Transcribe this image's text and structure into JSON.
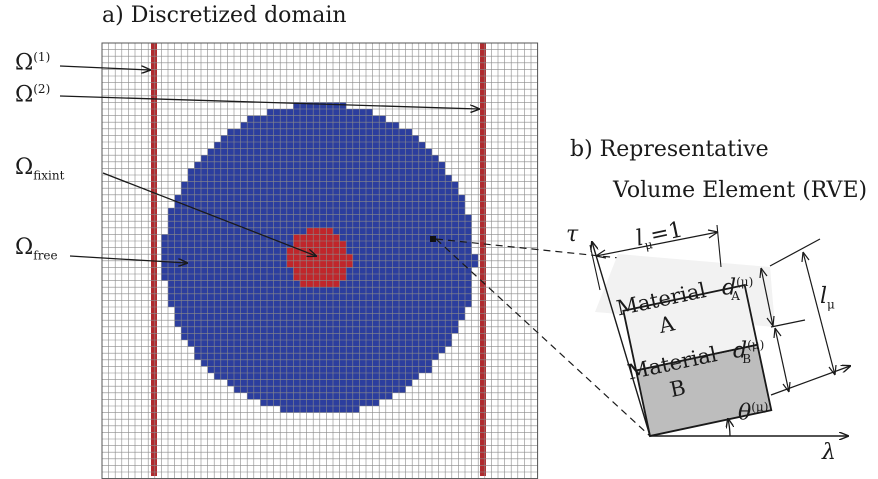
{
  "panel_a": {
    "title": "a) Discretized domain",
    "labels": {
      "omega1": {
        "base": "Ω",
        "sup": "(1)"
      },
      "omega2": {
        "base": "Ω",
        "sup": "(2)"
      },
      "omega_fixint": {
        "base": "Ω",
        "sub": "fixint"
      },
      "omega_free": {
        "base": "Ω",
        "sub": "free"
      }
    },
    "colors": {
      "grid": "#8a8a8a",
      "free_region": "#2c3e9e",
      "fixed_region": "#c0262b",
      "strip": "#b02a2e"
    }
  },
  "panel_b": {
    "title_line1": "b) Representative",
    "title_line2": "Volume Element (RVE)",
    "material_a": {
      "line1": "Material",
      "line2": "A",
      "color": "#f2f2f2"
    },
    "material_b": {
      "line1": "Material",
      "line2": "B",
      "color": "#bdbdbd"
    },
    "symbols": {
      "tau": "τ",
      "lambda": "λ",
      "l_unit": {
        "base": "l",
        "sub": "μ",
        "suffix": "=1"
      },
      "l_mu": {
        "base": "l",
        "sub": "μ"
      },
      "d_a": {
        "base": "d",
        "sub": "A",
        "sup": "(μ)"
      },
      "d_b": {
        "base": "d",
        "sub": "B",
        "sup": "(μ)"
      },
      "theta": {
        "base": "θ",
        "sup": "(μ)"
      }
    }
  }
}
